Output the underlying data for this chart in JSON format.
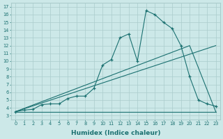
{
  "xlabel": "Humidex (Indice chaleur)",
  "bg_color": "#cce8e8",
  "grid_color": "#aacccc",
  "line_color": "#1a7070",
  "xlim": [
    -0.5,
    23.5
  ],
  "ylim": [
    2.5,
    17.5
  ],
  "xticks": [
    0,
    1,
    2,
    3,
    4,
    5,
    6,
    7,
    8,
    9,
    10,
    11,
    12,
    13,
    14,
    15,
    16,
    17,
    18,
    19,
    20,
    21,
    22,
    23
  ],
  "yticks": [
    3,
    4,
    5,
    6,
    7,
    8,
    9,
    10,
    11,
    12,
    13,
    14,
    15,
    16,
    17
  ],
  "curve_x": [
    0,
    1,
    2,
    3,
    4,
    5,
    6,
    7,
    8,
    9,
    10,
    11,
    12,
    13,
    14,
    15,
    16,
    17,
    18,
    19,
    20,
    21,
    22,
    23
  ],
  "curve_y": [
    3.5,
    3.7,
    3.8,
    4.4,
    4.5,
    4.5,
    5.2,
    5.5,
    5.5,
    6.5,
    9.5,
    10.2,
    13.0,
    13.5,
    10.0,
    16.5,
    16.0,
    15.0,
    14.2,
    12.0,
    8.0,
    5.0,
    4.5,
    4.2
  ],
  "line1_x": [
    0,
    23
  ],
  "line1_y": [
    3.5,
    3.5
  ],
  "line2_x": [
    0,
    23
  ],
  "line2_y": [
    3.5,
    12.0
  ],
  "line3_x": [
    0,
    20,
    23
  ],
  "line3_y": [
    3.5,
    12.0,
    3.5
  ],
  "xticklabels": [
    "0",
    "1",
    "2",
    "3",
    "4",
    "5",
    "6",
    "7",
    "8",
    "9",
    "10",
    "11",
    "12",
    "13",
    "14",
    "15",
    "16",
    "17",
    "18",
    "19",
    "20",
    "21",
    "22",
    "23"
  ],
  "yticklabels": [
    "3",
    "4",
    "5",
    "6",
    "7",
    "8",
    "9",
    "10",
    "11",
    "12",
    "13",
    "14",
    "15",
    "16",
    "17"
  ]
}
